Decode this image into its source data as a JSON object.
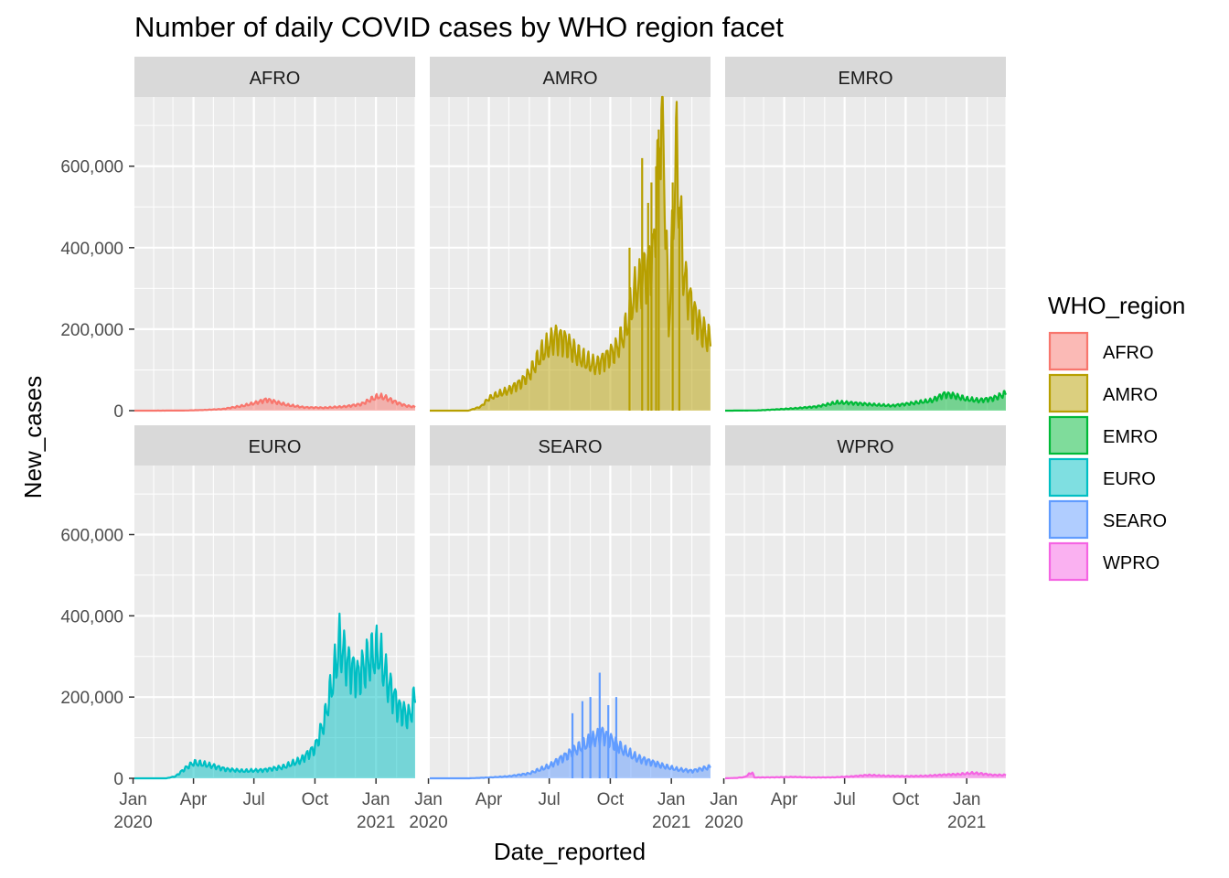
{
  "chart_data": {
    "type": "area",
    "title": "Number of daily COVID cases by WHO region facet",
    "xlabel": "Date_reported",
    "ylabel": "New_cases",
    "x_ticks": [
      "Jan\n2020",
      "Apr",
      "Jul",
      "Oct",
      "Jan\n2021"
    ],
    "x_tick_dates": [
      "2020-01-01",
      "2020-04-01",
      "2020-07-01",
      "2020-10-01",
      "2021-01-01"
    ],
    "xlim": [
      "2020-01-03",
      "2021-03-01"
    ],
    "y_ticks": [
      "0",
      "200,000",
      "400,000",
      "600,000"
    ],
    "y_tick_values": [
      0,
      200000,
      400000,
      600000
    ],
    "ylim": [
      0,
      770000
    ],
    "grid": true,
    "legend_title": "WHO_region",
    "legend_position": "right",
    "panels": [
      {
        "label": "AFRO",
        "color": "#F8766D",
        "points": [
          [
            "2020-01-03",
            0
          ],
          [
            "2020-03-15",
            200
          ],
          [
            "2020-04-15",
            1500
          ],
          [
            "2020-05-15",
            4000
          ],
          [
            "2020-06-15",
            12000
          ],
          [
            "2020-07-01",
            18000
          ],
          [
            "2020-07-20",
            27000
          ],
          [
            "2020-08-01",
            22000
          ],
          [
            "2020-08-20",
            14000
          ],
          [
            "2020-09-15",
            8000
          ],
          [
            "2020-10-15",
            7000
          ],
          [
            "2020-11-15",
            10000
          ],
          [
            "2020-12-10",
            16000
          ],
          [
            "2020-12-25",
            28000
          ],
          [
            "2021-01-05",
            35000
          ],
          [
            "2021-01-15",
            32000
          ],
          [
            "2021-02-01",
            20000
          ],
          [
            "2021-02-15",
            12000
          ],
          [
            "2021-03-01",
            9000
          ]
        ]
      },
      {
        "label": "AMRO",
        "color": "#B79F00",
        "points": [
          [
            "2020-01-03",
            0
          ],
          [
            "2020-03-01",
            0
          ],
          [
            "2020-03-20",
            10000
          ],
          [
            "2020-04-01",
            30000
          ],
          [
            "2020-04-15",
            40000
          ],
          [
            "2020-05-01",
            50000
          ],
          [
            "2020-05-20",
            70000
          ],
          [
            "2020-06-01",
            90000
          ],
          [
            "2020-06-20",
            140000
          ],
          [
            "2020-07-10",
            180000
          ],
          [
            "2020-07-25",
            170000
          ],
          [
            "2020-08-10",
            140000
          ],
          [
            "2020-08-25",
            120000
          ],
          [
            "2020-09-10",
            110000
          ],
          [
            "2020-09-25",
            130000
          ],
          [
            "2020-10-10",
            150000
          ],
          [
            "2020-10-25",
            200000
          ],
          [
            "2020-11-05",
            280000
          ],
          [
            "2020-11-20",
            330000
          ],
          [
            "2020-12-05",
            380000
          ],
          [
            "2020-12-18",
            770000
          ],
          [
            "2020-12-28",
            200000
          ],
          [
            "2021-01-08",
            640000
          ],
          [
            "2021-01-20",
            330000
          ],
          [
            "2021-02-01",
            250000
          ],
          [
            "2021-02-15",
            200000
          ],
          [
            "2021-03-01",
            170000
          ]
        ]
      },
      {
        "label": "EMRO",
        "color": "#00BA38",
        "points": [
          [
            "2020-01-03",
            0
          ],
          [
            "2020-02-20",
            500
          ],
          [
            "2020-03-20",
            3000
          ],
          [
            "2020-04-20",
            6000
          ],
          [
            "2020-05-20",
            10000
          ],
          [
            "2020-06-20",
            20000
          ],
          [
            "2020-07-10",
            19000
          ],
          [
            "2020-08-10",
            15000
          ],
          [
            "2020-09-10",
            12000
          ],
          [
            "2020-10-10",
            18000
          ],
          [
            "2020-11-10",
            25000
          ],
          [
            "2020-11-28",
            40000
          ],
          [
            "2020-12-10",
            38000
          ],
          [
            "2021-01-01",
            28000
          ],
          [
            "2021-01-20",
            25000
          ],
          [
            "2021-02-10",
            30000
          ],
          [
            "2021-03-01",
            42000
          ]
        ]
      },
      {
        "label": "EURO",
        "color": "#00BFC4",
        "points": [
          [
            "2020-01-03",
            0
          ],
          [
            "2020-02-20",
            0
          ],
          [
            "2020-03-05",
            5000
          ],
          [
            "2020-03-20",
            25000
          ],
          [
            "2020-04-01",
            38000
          ],
          [
            "2020-04-15",
            35000
          ],
          [
            "2020-05-01",
            30000
          ],
          [
            "2020-05-20",
            22000
          ],
          [
            "2020-06-15",
            18000
          ],
          [
            "2020-07-15",
            20000
          ],
          [
            "2020-08-15",
            28000
          ],
          [
            "2020-09-10",
            45000
          ],
          [
            "2020-10-01",
            75000
          ],
          [
            "2020-10-15",
            140000
          ],
          [
            "2020-10-28",
            240000
          ],
          [
            "2020-11-07",
            330000
          ],
          [
            "2020-11-20",
            280000
          ],
          [
            "2020-12-05",
            250000
          ],
          [
            "2020-12-20",
            290000
          ],
          [
            "2021-01-05",
            310000
          ],
          [
            "2021-01-20",
            230000
          ],
          [
            "2021-02-05",
            170000
          ],
          [
            "2021-02-20",
            150000
          ],
          [
            "2021-03-01",
            200000
          ]
        ]
      },
      {
        "label": "SEARO",
        "color": "#619CFF",
        "points": [
          [
            "2020-01-03",
            0
          ],
          [
            "2020-03-01",
            0
          ],
          [
            "2020-04-01",
            2000
          ],
          [
            "2020-05-01",
            5000
          ],
          [
            "2020-06-01",
            12000
          ],
          [
            "2020-07-01",
            30000
          ],
          [
            "2020-07-20",
            50000
          ],
          [
            "2020-08-10",
            70000
          ],
          [
            "2020-09-01",
            90000
          ],
          [
            "2020-09-18",
            110000
          ],
          [
            "2020-10-01",
            95000
          ],
          [
            "2020-10-20",
            70000
          ],
          [
            "2020-11-10",
            50000
          ],
          [
            "2020-12-01",
            40000
          ],
          [
            "2020-12-20",
            30000
          ],
          [
            "2021-01-10",
            22000
          ],
          [
            "2021-02-01",
            18000
          ],
          [
            "2021-03-01",
            28000
          ]
        ]
      },
      {
        "label": "WPRO",
        "color": "#F564E3",
        "points": [
          [
            "2020-01-03",
            0
          ],
          [
            "2020-01-20",
            1000
          ],
          [
            "2020-02-01",
            3000
          ],
          [
            "2020-02-13",
            15000
          ],
          [
            "2020-02-16",
            2000
          ],
          [
            "2020-03-15",
            2500
          ],
          [
            "2020-04-15",
            3500
          ],
          [
            "2020-05-15",
            2000
          ],
          [
            "2020-06-15",
            2500
          ],
          [
            "2020-07-15",
            5000
          ],
          [
            "2020-08-05",
            8000
          ],
          [
            "2020-09-01",
            6000
          ],
          [
            "2020-10-01",
            5000
          ],
          [
            "2020-11-01",
            6000
          ],
          [
            "2020-12-01",
            9000
          ],
          [
            "2020-12-20",
            10000
          ],
          [
            "2021-01-10",
            13000
          ],
          [
            "2021-01-25",
            11000
          ],
          [
            "2021-02-10",
            8000
          ],
          [
            "2021-03-01",
            8000
          ]
        ]
      }
    ],
    "spikes": {
      "AMRO": [
        [
          "2020-11-18",
          620000
        ],
        [
          "2020-12-02",
          560000
        ],
        [
          "2020-12-09",
          600000
        ],
        [
          "2020-12-13",
          690000
        ],
        [
          "2021-01-03",
          560000
        ],
        [
          "2021-01-13",
          500000
        ],
        [
          "2020-11-27",
          510000
        ],
        [
          "2020-10-30",
          400000
        ]
      ],
      "SEARO": [
        [
          "2020-09-15",
          260000
        ],
        [
          "2020-09-01",
          200000
        ],
        [
          "2020-08-20",
          190000
        ],
        [
          "2020-10-10",
          200000
        ],
        [
          "2020-08-05",
          160000
        ],
        [
          "2020-09-28",
          180000
        ]
      ]
    }
  }
}
